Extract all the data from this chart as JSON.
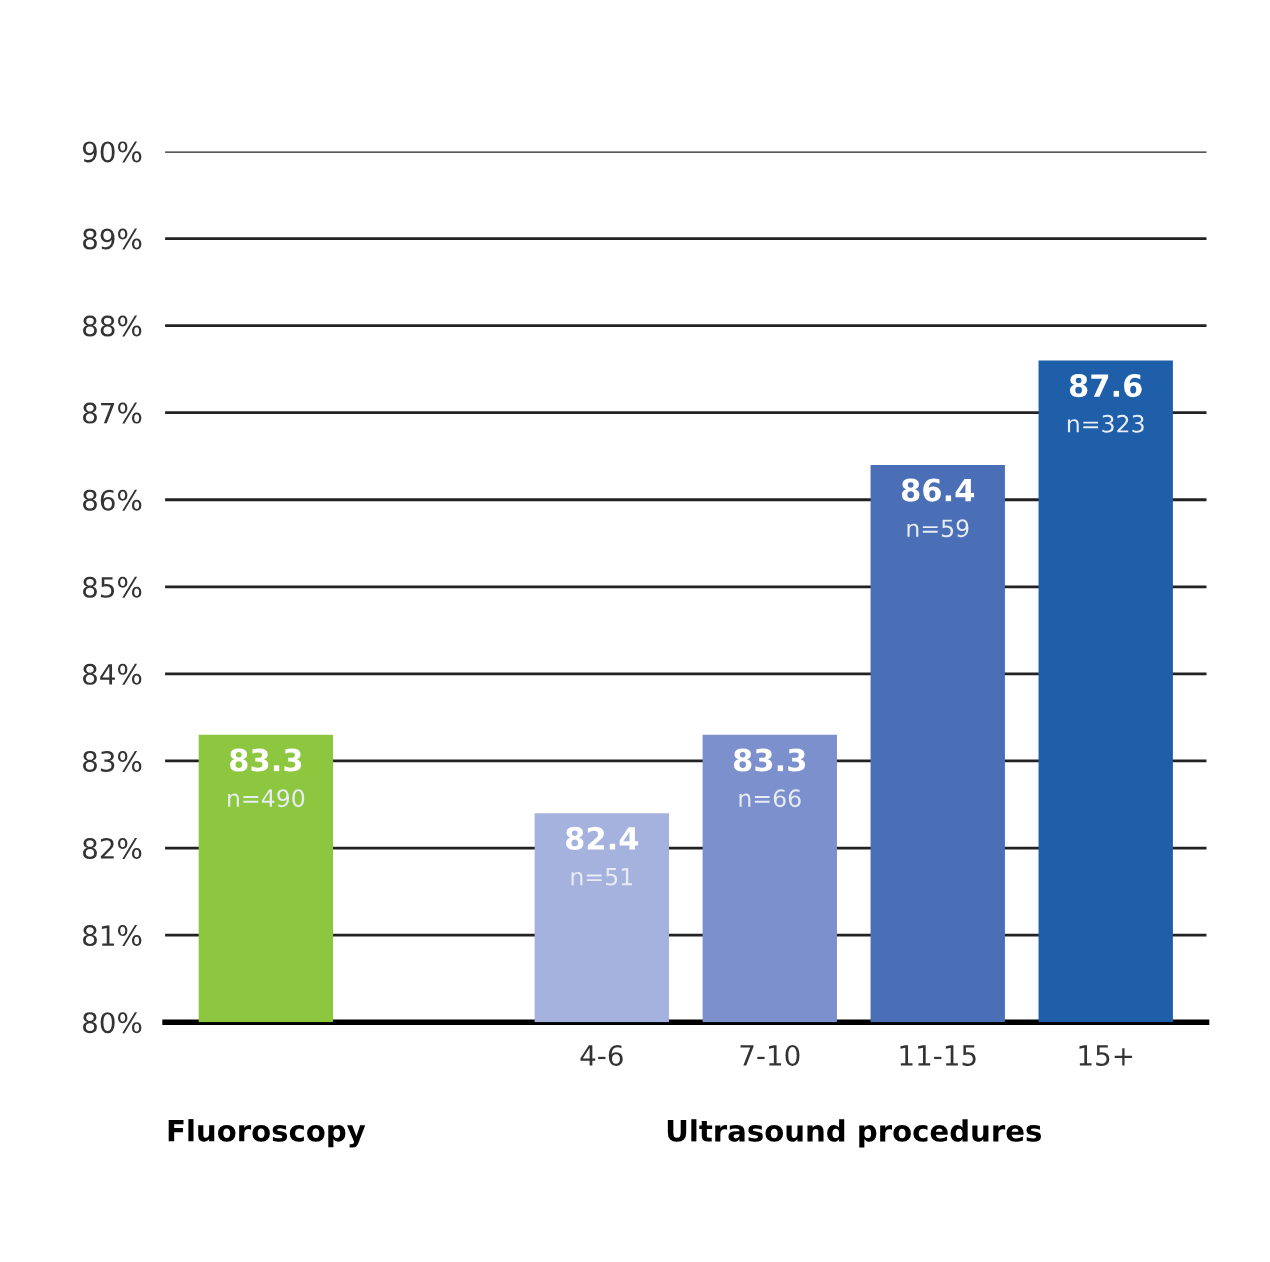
{
  "chart_data": {
    "type": "bar",
    "categories": [
      null,
      null,
      "4-6",
      "7-10",
      "11-15",
      "15+"
    ],
    "values": [
      83.3,
      null,
      82.4,
      83.3,
      86.4,
      87.6
    ],
    "colors": [
      "#8dc63f",
      "#ffffff",
      "#a4b2dd",
      "#7b90cc",
      "#4b6fb6",
      "#1f5fa9"
    ],
    "value_labels": [
      "83.3\nn=490",
      null,
      "82.4\nn=51",
      "83.3\nn=66",
      "86.4\nn=59",
      "87.6\nn=323"
    ],
    "ylim": [
      80,
      90
    ],
    "yticks": [
      {
        "value": 80,
        "label": "80%"
      },
      {
        "value": 81,
        "label": "81%"
      },
      {
        "value": 82,
        "label": "82%"
      },
      {
        "value": 83,
        "label": "83%"
      },
      {
        "value": 84,
        "label": "84%"
      },
      {
        "value": 85,
        "label": "85%"
      },
      {
        "value": 86,
        "label": "86%"
      },
      {
        "value": 87,
        "label": "87%"
      },
      {
        "value": 88,
        "label": "88%"
      },
      {
        "value": 89,
        "label": "89%"
      },
      {
        "value": 90,
        "label": "90%"
      }
    ],
    "grid": "y",
    "annotations": [
      "Fluoroscopy",
      "Ultrasound procedures"
    ]
  }
}
